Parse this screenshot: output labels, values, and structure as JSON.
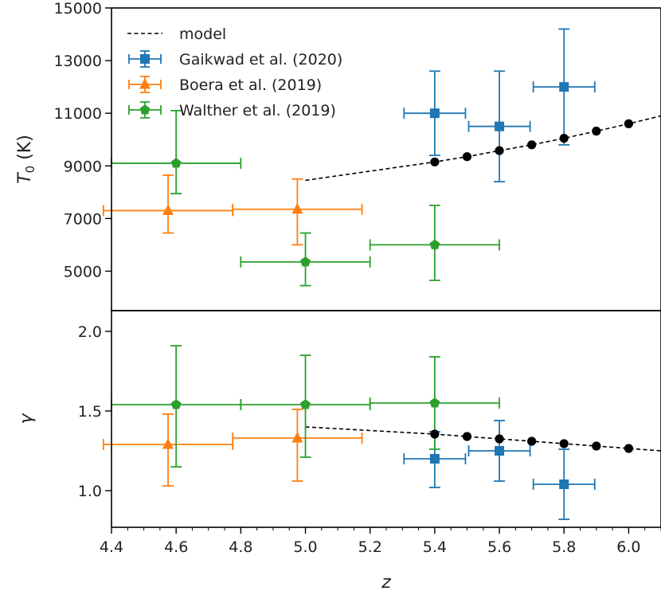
{
  "chart_data": [
    {
      "type": "scatter",
      "panel": "top",
      "ylabel_main": "T",
      "ylabel_sub": "0",
      "ylabel_unit": " (K)",
      "xlim": [
        4.4,
        6.1
      ],
      "ylim": [
        3500,
        15000
      ],
      "yticks": [
        5000,
        7000,
        9000,
        11000,
        13000,
        15000
      ],
      "ytick_labels": [
        "5000",
        "7000",
        "9000",
        "11000",
        "13000",
        "15000"
      ],
      "legend": {
        "position": "top-left",
        "entries": [
          {
            "key": "model",
            "label": "model"
          },
          {
            "key": "gaikwad",
            "label": "Gaikwad et al. (2020)"
          },
          {
            "key": "boera",
            "label": "Boera et al. (2019)"
          },
          {
            "key": "walther",
            "label": "Walther et al. (2019)"
          }
        ]
      },
      "model_line": {
        "x": [
          5.0,
          5.4,
          5.5,
          5.6,
          5.7,
          5.8,
          5.9,
          6.0,
          6.1
        ],
        "y": [
          8450,
          9150,
          9350,
          9580,
          9800,
          10050,
          10320,
          10600,
          10900
        ]
      },
      "model_points": {
        "x": [
          5.4,
          5.5,
          5.6,
          5.7,
          5.8,
          5.9,
          6.0
        ],
        "y": [
          9150,
          9350,
          9580,
          9800,
          10050,
          10320,
          10600
        ]
      },
      "series": [
        {
          "name": "Gaikwad et al. (2020)",
          "key": "gaikwad",
          "marker": "square",
          "color": "#1f77b4",
          "points": [
            {
              "x": 5.4,
              "y": 11000,
              "xerr": 0.095,
              "ylo": 9400,
              "yhi": 12600
            },
            {
              "x": 5.6,
              "y": 10500,
              "xerr": 0.095,
              "ylo": 8400,
              "yhi": 12600
            },
            {
              "x": 5.8,
              "y": 12000,
              "xerr": 0.095,
              "ylo": 9800,
              "yhi": 14200
            }
          ]
        },
        {
          "name": "Boera et al. (2019)",
          "key": "boera",
          "marker": "triangle",
          "color": "#ff7f0e",
          "points": [
            {
              "x": 4.575,
              "y": 7300,
              "xerr": 0.2,
              "ylo": 6450,
              "yhi": 8650
            },
            {
              "x": 4.975,
              "y": 7350,
              "xerr": 0.2,
              "ylo": 6000,
              "yhi": 8500
            }
          ]
        },
        {
          "name": "Walther et al. (2019)",
          "key": "walther",
          "marker": "pentagon",
          "color": "#2ca02c",
          "points": [
            {
              "x": 4.6,
              "y": 9100,
              "xerr": 0.2,
              "ylo": 7950,
              "yhi": 11100
            },
            {
              "x": 5.0,
              "y": 5350,
              "xerr": 0.2,
              "ylo": 4450,
              "yhi": 6450
            },
            {
              "x": 5.4,
              "y": 6000,
              "xerr": 0.2,
              "ylo": 4650,
              "yhi": 7500
            }
          ]
        }
      ]
    },
    {
      "type": "scatter",
      "panel": "bottom",
      "ylabel": "γ",
      "xlabel": "z",
      "xlim": [
        4.4,
        6.1
      ],
      "ylim": [
        0.77,
        2.13
      ],
      "yticks": [
        1.0,
        1.5,
        2.0
      ],
      "ytick_labels": [
        "1.0",
        "1.5",
        "2.0"
      ],
      "xticks": [
        4.4,
        4.6,
        4.8,
        5.0,
        5.2,
        5.4,
        5.6,
        5.8,
        6.0
      ],
      "xtick_labels": [
        "4.4",
        "4.6",
        "4.8",
        "5.0",
        "5.2",
        "5.4",
        "5.6",
        "5.8",
        "6.0"
      ],
      "model_line": {
        "x": [
          5.0,
          5.4,
          5.5,
          5.6,
          5.7,
          5.8,
          5.9,
          6.0,
          6.1
        ],
        "y": [
          1.4,
          1.355,
          1.34,
          1.325,
          1.31,
          1.295,
          1.28,
          1.265,
          1.25
        ]
      },
      "model_points": {
        "x": [
          5.4,
          5.5,
          5.6,
          5.7,
          5.8,
          5.9,
          6.0
        ],
        "y": [
          1.355,
          1.34,
          1.325,
          1.31,
          1.295,
          1.28,
          1.265
        ]
      },
      "series": [
        {
          "name": "Gaikwad et al. (2020)",
          "key": "gaikwad",
          "marker": "square",
          "color": "#1f77b4",
          "points": [
            {
              "x": 5.4,
              "y": 1.2,
              "xerr": 0.095,
              "ylo": 1.02,
              "yhi": 1.37
            },
            {
              "x": 5.6,
              "y": 1.25,
              "xerr": 0.095,
              "ylo": 1.06,
              "yhi": 1.44
            },
            {
              "x": 5.8,
              "y": 1.04,
              "xerr": 0.095,
              "ylo": 0.82,
              "yhi": 1.26
            }
          ]
        },
        {
          "name": "Boera et al. (2019)",
          "key": "boera",
          "marker": "triangle",
          "color": "#ff7f0e",
          "points": [
            {
              "x": 4.575,
              "y": 1.29,
              "xerr": 0.2,
              "ylo": 1.03,
              "yhi": 1.48
            },
            {
              "x": 4.975,
              "y": 1.33,
              "xerr": 0.2,
              "ylo": 1.06,
              "yhi": 1.51
            }
          ]
        },
        {
          "name": "Walther et al. (2019)",
          "key": "walther",
          "marker": "pentagon",
          "color": "#2ca02c",
          "points": [
            {
              "x": 4.6,
              "y": 1.54,
              "xerr": 0.2,
              "ylo": 1.15,
              "yhi": 1.91
            },
            {
              "x": 5.0,
              "y": 1.54,
              "xerr": 0.2,
              "ylo": 1.21,
              "yhi": 1.85
            },
            {
              "x": 5.4,
              "y": 1.55,
              "xerr": 0.2,
              "ylo": 1.26,
              "yhi": 1.84
            }
          ]
        }
      ]
    }
  ]
}
